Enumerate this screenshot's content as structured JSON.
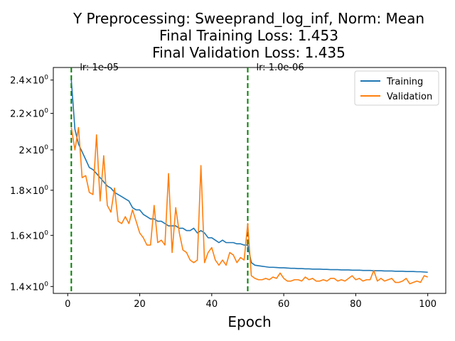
{
  "chart_data": {
    "type": "line",
    "title_lines": [
      "Y Preprocessing: Sweeprand_log_inf, Norm: Mean",
      "Final Training Loss: 1.453",
      "Final Validation Loss: 1.435"
    ],
    "xlabel": "Epoch",
    "ylabel": "",
    "y_scale": "log",
    "xlim": [
      -4,
      105
    ],
    "ylim": [
      1.375,
      2.48
    ],
    "x_ticks": [
      0,
      20,
      40,
      60,
      80,
      100
    ],
    "x_tick_labels": [
      "0",
      "20",
      "40",
      "60",
      "80",
      "100"
    ],
    "y_ticks": [
      1.4,
      1.6,
      1.8,
      2.0,
      2.2,
      2.4
    ],
    "y_tick_labels": [
      "1.4",
      "1.6",
      "1.8",
      "2",
      "2.2",
      "2.4"
    ],
    "y_tick_suffix": "×10",
    "y_tick_exponent": "0",
    "grid": false,
    "legend_position": "top-right",
    "x": [
      1,
      2,
      3,
      4,
      5,
      6,
      7,
      8,
      9,
      10,
      11,
      12,
      13,
      14,
      15,
      16,
      17,
      18,
      19,
      20,
      21,
      22,
      23,
      24,
      25,
      26,
      27,
      28,
      29,
      30,
      31,
      32,
      33,
      34,
      35,
      36,
      37,
      38,
      39,
      40,
      41,
      42,
      43,
      44,
      45,
      46,
      47,
      48,
      49,
      50,
      51,
      52,
      53,
      54,
      55,
      56,
      57,
      58,
      59,
      60,
      61,
      62,
      63,
      64,
      65,
      66,
      67,
      68,
      69,
      70,
      71,
      72,
      73,
      74,
      75,
      76,
      77,
      78,
      79,
      80,
      81,
      82,
      83,
      84,
      85,
      86,
      87,
      88,
      89,
      90,
      91,
      92,
      93,
      94,
      95,
      96,
      97,
      98,
      99,
      100
    ],
    "series": [
      {
        "name": "Training",
        "color": "#1f77b4",
        "values": [
          2.4,
          2.11,
          2.03,
          1.99,
          1.95,
          1.91,
          1.9,
          1.88,
          1.86,
          1.84,
          1.82,
          1.81,
          1.79,
          1.78,
          1.77,
          1.76,
          1.75,
          1.72,
          1.71,
          1.71,
          1.69,
          1.68,
          1.67,
          1.67,
          1.66,
          1.66,
          1.65,
          1.64,
          1.64,
          1.64,
          1.63,
          1.63,
          1.62,
          1.62,
          1.63,
          1.61,
          1.62,
          1.61,
          1.59,
          1.59,
          1.58,
          1.57,
          1.58,
          1.57,
          1.57,
          1.57,
          1.565,
          1.565,
          1.56,
          1.56,
          1.49,
          1.48,
          1.478,
          1.476,
          1.474,
          1.472,
          1.472,
          1.471,
          1.47,
          1.47,
          1.469,
          1.468,
          1.468,
          1.467,
          1.467,
          1.466,
          1.466,
          1.465,
          1.465,
          1.465,
          1.464,
          1.464,
          1.463,
          1.463,
          1.463,
          1.462,
          1.462,
          1.462,
          1.461,
          1.461,
          1.461,
          1.46,
          1.46,
          1.46,
          1.459,
          1.459,
          1.459,
          1.458,
          1.458,
          1.458,
          1.457,
          1.457,
          1.457,
          1.456,
          1.456,
          1.456,
          1.455,
          1.455,
          1.454,
          1.453
        ]
      },
      {
        "name": "Validation",
        "color": "#ff7f0e",
        "values": [
          2.12,
          2.0,
          2.12,
          1.86,
          1.87,
          1.79,
          1.78,
          2.08,
          1.75,
          1.97,
          1.73,
          1.7,
          1.81,
          1.66,
          1.65,
          1.68,
          1.65,
          1.71,
          1.66,
          1.61,
          1.59,
          1.56,
          1.56,
          1.73,
          1.57,
          1.58,
          1.56,
          1.88,
          1.53,
          1.72,
          1.61,
          1.54,
          1.53,
          1.5,
          1.49,
          1.5,
          1.92,
          1.49,
          1.53,
          1.55,
          1.5,
          1.48,
          1.5,
          1.48,
          1.53,
          1.52,
          1.49,
          1.51,
          1.5,
          1.65,
          1.44,
          1.43,
          1.425,
          1.425,
          1.43,
          1.425,
          1.435,
          1.43,
          1.45,
          1.43,
          1.42,
          1.42,
          1.425,
          1.425,
          1.42,
          1.435,
          1.425,
          1.43,
          1.42,
          1.42,
          1.425,
          1.42,
          1.43,
          1.43,
          1.42,
          1.425,
          1.42,
          1.43,
          1.44,
          1.425,
          1.43,
          1.42,
          1.425,
          1.425,
          1.46,
          1.42,
          1.43,
          1.42,
          1.425,
          1.43,
          1.415,
          1.415,
          1.42,
          1.43,
          1.41,
          1.415,
          1.42,
          1.415,
          1.44,
          1.435
        ]
      }
    ],
    "vlines": [
      {
        "x": 1,
        "label": "lr: 1e-05",
        "color": "#008000"
      },
      {
        "x": 50,
        "label": "lr: 1.0e-06",
        "color": "#008000"
      }
    ]
  }
}
